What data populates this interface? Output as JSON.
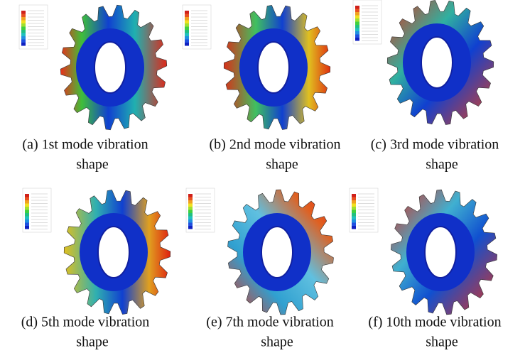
{
  "panels": [
    {
      "caption": [
        "(a) 1st mode vibration",
        "shape"
      ]
    },
    {
      "caption": [
        "(b) 2nd mode vibration",
        "shape"
      ]
    },
    {
      "caption": [
        "(c) 3rd mode vibration",
        "shape"
      ]
    },
    {
      "caption": [
        "(d) 5th mode vibration",
        "shape"
      ]
    },
    {
      "caption": [
        "(e) 7th mode vibration",
        "shape"
      ]
    },
    {
      "caption": [
        "(f) 10th mode vibration",
        "shape"
      ]
    }
  ]
}
